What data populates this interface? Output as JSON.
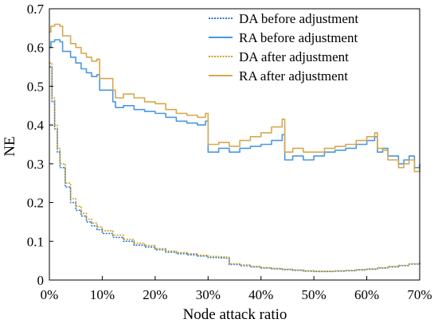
{
  "chart_data": {
    "type": "line",
    "xlabel": "Node attack ratio",
    "ylabel": "NE",
    "xlim": [
      0,
      70
    ],
    "ylim": [
      0,
      0.7
    ],
    "x_ticks": [
      "0%",
      "10%",
      "20%",
      "30%",
      "40%",
      "50%",
      "60%",
      "70%"
    ],
    "y_ticks": [
      "0",
      "0.1",
      "0.2",
      "0.3",
      "0.4",
      "0.5",
      "0.6",
      "0.7"
    ],
    "x_unit": "%",
    "grid": false,
    "legend_position": "top-right",
    "colors": {
      "da_before": "#2e75d6",
      "ra_before": "#4a98e0",
      "da_after": "#c9a227",
      "ra_after": "#d6a84e"
    },
    "series": [
      {
        "name": "DA before adjustment",
        "key": "da_before",
        "style": "dotted",
        "x": [
          0,
          0.5,
          1,
          1.5,
          2,
          3,
          4,
          5,
          6,
          7,
          8,
          9,
          10,
          12,
          14,
          16,
          18,
          20,
          22,
          24,
          26,
          28,
          30,
          32,
          33.5,
          34,
          36,
          38,
          40,
          42,
          44,
          46,
          48,
          50,
          52,
          54,
          56,
          58,
          60,
          62,
          64,
          66,
          68,
          70
        ],
        "values": [
          0.55,
          0.46,
          0.39,
          0.33,
          0.29,
          0.24,
          0.2,
          0.18,
          0.165,
          0.15,
          0.14,
          0.13,
          0.12,
          0.11,
          0.1,
          0.09,
          0.085,
          0.078,
          0.072,
          0.068,
          0.065,
          0.062,
          0.058,
          0.057,
          0.056,
          0.04,
          0.037,
          0.034,
          0.031,
          0.029,
          0.027,
          0.025,
          0.023,
          0.022,
          0.022,
          0.023,
          0.024,
          0.026,
          0.028,
          0.031,
          0.034,
          0.037,
          0.041,
          0.045
        ]
      },
      {
        "name": "RA before adjustment",
        "key": "ra_before",
        "style": "solid",
        "x": [
          0,
          0.3,
          1,
          2,
          2.5,
          4,
          5,
          6,
          7,
          8,
          9,
          9.5,
          10,
          12,
          12.5,
          14,
          16,
          18,
          20,
          22,
          24,
          26,
          28,
          29.5,
          30,
          32,
          34,
          36,
          38,
          40,
          42,
          44,
          44.5,
          46,
          48,
          50,
          52,
          54,
          56,
          58,
          60,
          61.5,
          62,
          63,
          64,
          66,
          67,
          68,
          69,
          70
        ],
        "values": [
          0.6,
          0.615,
          0.62,
          0.615,
          0.59,
          0.575,
          0.56,
          0.545,
          0.535,
          0.525,
          0.53,
          0.49,
          0.49,
          0.46,
          0.445,
          0.45,
          0.44,
          0.435,
          0.43,
          0.42,
          0.41,
          0.405,
          0.4,
          0.41,
          0.33,
          0.34,
          0.33,
          0.34,
          0.345,
          0.35,
          0.36,
          0.375,
          0.31,
          0.32,
          0.31,
          0.32,
          0.33,
          0.335,
          0.34,
          0.35,
          0.36,
          0.37,
          0.33,
          0.34,
          0.32,
          0.3,
          0.31,
          0.32,
          0.29,
          0.3
        ]
      },
      {
        "name": "DA after adjustment",
        "key": "da_after",
        "style": "dotted",
        "x": [
          0,
          0.5,
          1,
          1.5,
          2,
          3,
          4,
          5,
          6,
          7,
          8,
          9,
          10,
          12,
          14,
          16,
          18,
          20,
          22,
          24,
          26,
          28,
          30,
          32,
          33.5,
          34,
          36,
          38,
          40,
          42,
          44,
          46,
          48,
          50,
          52,
          54,
          56,
          58,
          60,
          62,
          64,
          66,
          68,
          70
        ],
        "values": [
          0.56,
          0.47,
          0.4,
          0.34,
          0.3,
          0.25,
          0.21,
          0.19,
          0.172,
          0.157,
          0.147,
          0.137,
          0.127,
          0.116,
          0.105,
          0.095,
          0.089,
          0.081,
          0.075,
          0.071,
          0.068,
          0.064,
          0.061,
          0.06,
          0.059,
          0.042,
          0.039,
          0.035,
          0.032,
          0.03,
          0.028,
          0.026,
          0.024,
          0.023,
          0.023,
          0.024,
          0.025,
          0.027,
          0.029,
          0.032,
          0.035,
          0.038,
          0.042,
          0.047
        ]
      },
      {
        "name": "RA after adjustment",
        "key": "ra_after",
        "style": "solid",
        "x": [
          0,
          0.3,
          1,
          2,
          2.5,
          4,
          5,
          6,
          7,
          8,
          9,
          9.5,
          10,
          12,
          12.5,
          14,
          16,
          18,
          20,
          22,
          24,
          26,
          28,
          29.5,
          30,
          32,
          34,
          36,
          38,
          40,
          42,
          44,
          44.5,
          46,
          48,
          50,
          52,
          54,
          56,
          58,
          60,
          61.5,
          62,
          63,
          64,
          66,
          67,
          68,
          69,
          70
        ],
        "values": [
          0.64,
          0.655,
          0.66,
          0.655,
          0.63,
          0.61,
          0.6,
          0.585,
          0.575,
          0.565,
          0.57,
          0.52,
          0.52,
          0.49,
          0.47,
          0.48,
          0.47,
          0.46,
          0.455,
          0.44,
          0.43,
          0.425,
          0.42,
          0.43,
          0.35,
          0.355,
          0.345,
          0.36,
          0.37,
          0.38,
          0.395,
          0.415,
          0.33,
          0.34,
          0.33,
          0.33,
          0.34,
          0.345,
          0.35,
          0.36,
          0.37,
          0.38,
          0.34,
          0.335,
          0.31,
          0.29,
          0.3,
          0.31,
          0.28,
          0.295
        ]
      }
    ]
  }
}
